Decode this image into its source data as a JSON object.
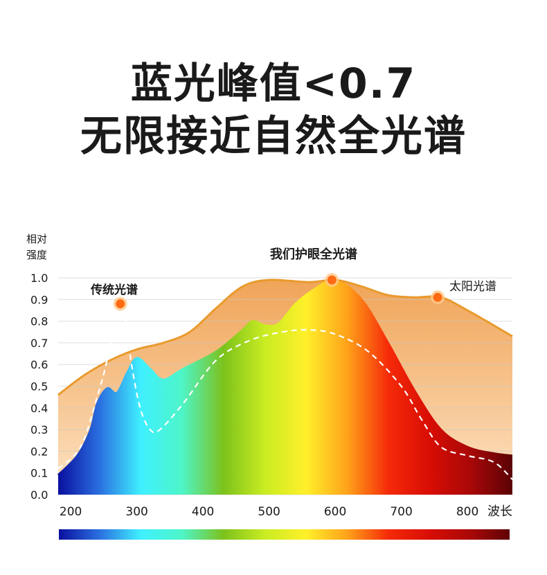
{
  "title": {
    "line1": "蓝光峰值<0.7",
    "line2": "无限接近自然全光谱"
  },
  "chart_data": {
    "type": "area",
    "ylabel_line1": "相对",
    "ylabel_line2": "强度",
    "xlabel": "波长",
    "xlim": [
      181,
      868
    ],
    "ylim": [
      0,
      1.0
    ],
    "xticks": [
      200,
      300,
      400,
      500,
      600,
      700,
      800
    ],
    "yticks": [
      "0.0",
      "0.1",
      "0.2",
      "0.3",
      "0.4",
      "0.5",
      "0.6",
      "0.7",
      "0.8",
      "0.9",
      "1.0"
    ],
    "grid": true,
    "series": [
      {
        "name": "太阳光谱",
        "color": "#e99a2c",
        "x": [
          181,
          220,
          260,
          300,
          340,
          380,
          420,
          460,
          500,
          560,
          600,
          640,
          680,
          720,
          760,
          800,
          840,
          868
        ],
        "y": [
          0.46,
          0.55,
          0.62,
          0.67,
          0.7,
          0.75,
          0.86,
          0.96,
          0.99,
          0.98,
          0.99,
          0.96,
          0.92,
          0.91,
          0.91,
          0.85,
          0.78,
          0.73
        ],
        "marker": {
          "x": 755,
          "y": 0.91
        }
      },
      {
        "name": "传统光谱",
        "color": "#ffffff",
        "x": [
          181,
          215,
          240,
          255,
          268,
          275,
          283,
          292,
          305,
          320,
          335,
          370,
          420,
          470,
          520,
          560,
          600,
          650,
          700,
          730,
          760,
          800,
          840,
          868
        ],
        "y": [
          0.12,
          0.22,
          0.45,
          0.62,
          0.82,
          0.88,
          0.8,
          0.6,
          0.4,
          0.3,
          0.3,
          0.42,
          0.62,
          0.71,
          0.75,
          0.76,
          0.74,
          0.66,
          0.5,
          0.35,
          0.22,
          0.18,
          0.15,
          0.07
        ],
        "marker": {
          "x": 275,
          "y": 0.88
        }
      },
      {
        "name": "我们护眼全光谱",
        "x": [
          181,
          210,
          230,
          240,
          255,
          270,
          285,
          300,
          320,
          340,
          370,
          420,
          460,
          475,
          495,
          515,
          540,
          570,
          600,
          640,
          680,
          720,
          760,
          800,
          840,
          868
        ],
        "y": [
          0.09,
          0.18,
          0.3,
          0.42,
          0.49,
          0.47,
          0.56,
          0.63,
          0.58,
          0.53,
          0.58,
          0.66,
          0.76,
          0.8,
          0.78,
          0.79,
          0.88,
          0.95,
          0.99,
          0.9,
          0.7,
          0.48,
          0.3,
          0.22,
          0.19,
          0.18
        ],
        "marker": {
          "x": 595,
          "y": 0.99
        }
      }
    ],
    "spectrum_colors": [
      "#0a0f9e",
      "#2a6fe0",
      "#3ff0ff",
      "#4ef5c8",
      "#7cc21c",
      "#c9ec22",
      "#fff02a",
      "#ffa21a",
      "#f52a08",
      "#d80d04",
      "#a80808",
      "#5a0206"
    ]
  }
}
